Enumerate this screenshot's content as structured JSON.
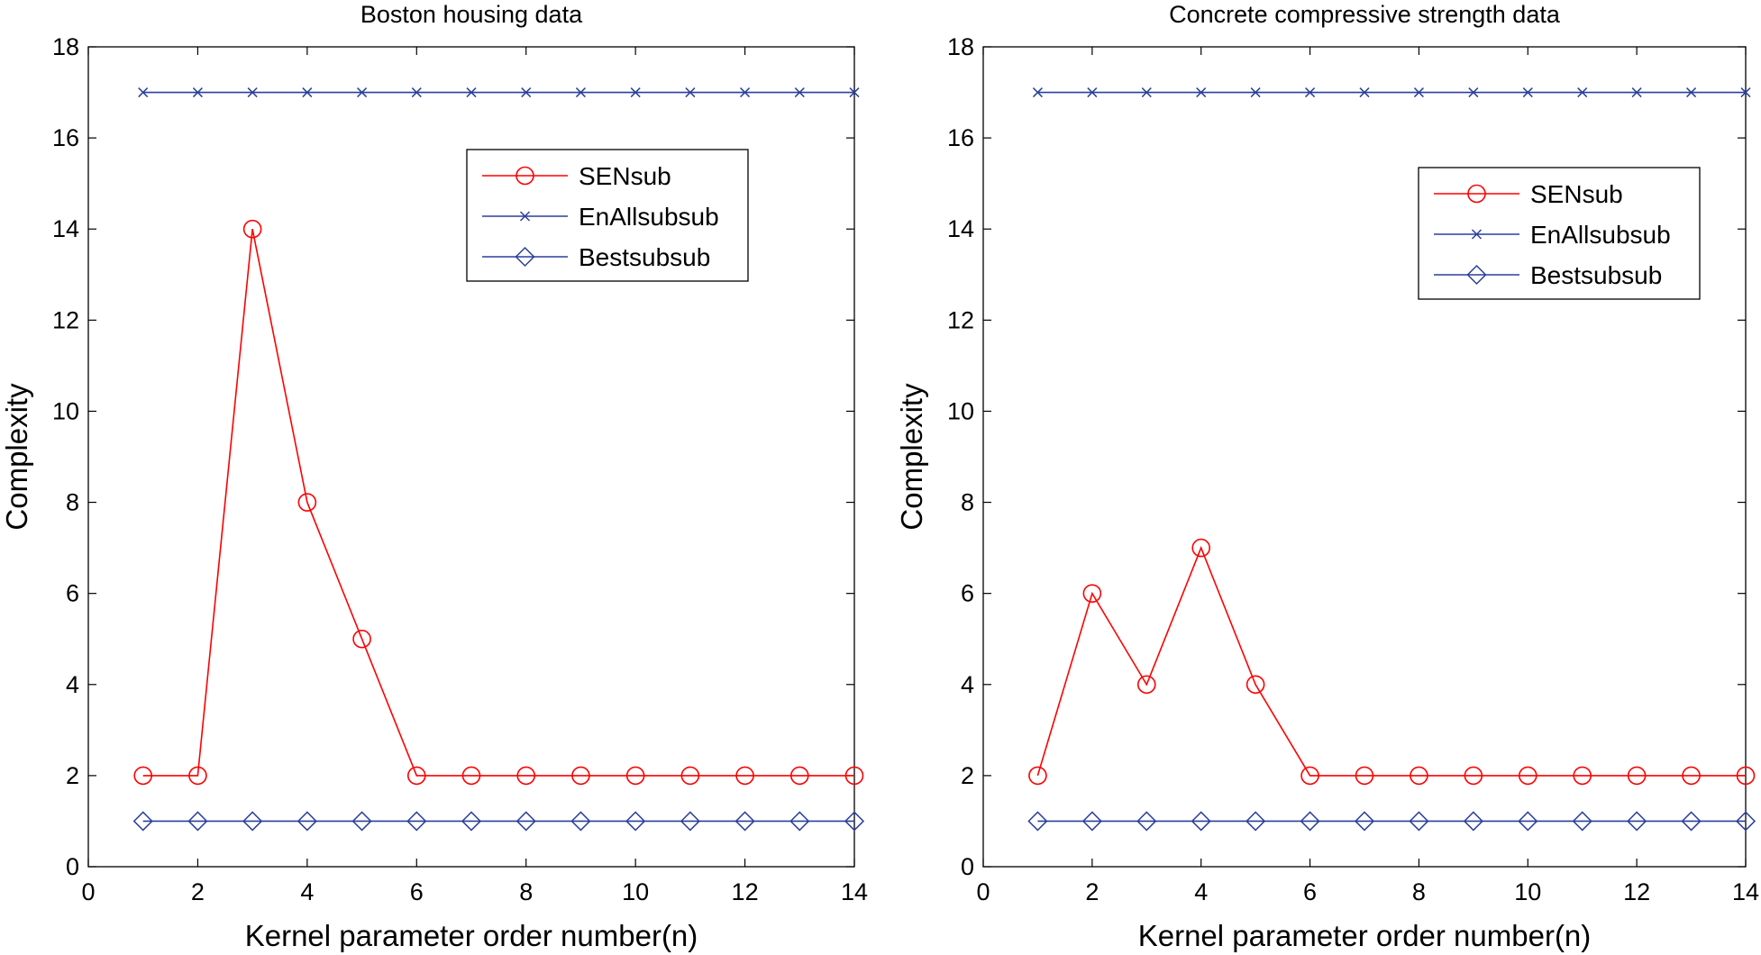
{
  "chart_data": [
    {
      "type": "line",
      "title": "Boston housing data",
      "xlabel": "Kernel parameter order number(n)",
      "ylabel": "Complexity",
      "xlim": [
        0,
        14
      ],
      "ylim": [
        0,
        18
      ],
      "xticks": [
        0,
        2,
        4,
        6,
        8,
        10,
        12,
        14
      ],
      "yticks": [
        0,
        2,
        4,
        6,
        8,
        10,
        12,
        14,
        16,
        18
      ],
      "grid": false,
      "legend_position": "top-right",
      "x": [
        1,
        2,
        3,
        4,
        5,
        6,
        7,
        8,
        9,
        10,
        11,
        12,
        13,
        14
      ],
      "series": [
        {
          "name": "SENsub",
          "color": "#ff0000",
          "marker": "circle",
          "values": [
            2,
            2,
            14,
            8,
            5,
            2,
            2,
            2,
            2,
            2,
            2,
            2,
            2,
            2
          ]
        },
        {
          "name": "EnAllsubsub",
          "color": "#2b3f9b",
          "marker": "x",
          "values": [
            17,
            17,
            17,
            17,
            17,
            17,
            17,
            17,
            17,
            17,
            17,
            17,
            17,
            17
          ]
        },
        {
          "name": "Bestsubsub",
          "color": "#2b3f9b",
          "marker": "diamond",
          "values": [
            1,
            1,
            1,
            1,
            1,
            1,
            1,
            1,
            1,
            1,
            1,
            1,
            1,
            1
          ]
        }
      ]
    },
    {
      "type": "line",
      "title": "Concrete compressive strength data",
      "xlabel": "Kernel parameter order number(n)",
      "ylabel": "Complexity",
      "xlim": [
        0,
        14
      ],
      "ylim": [
        0,
        18
      ],
      "xticks": [
        0,
        2,
        4,
        6,
        8,
        10,
        12,
        14
      ],
      "yticks": [
        0,
        2,
        4,
        6,
        8,
        10,
        12,
        14,
        16,
        18
      ],
      "grid": false,
      "legend_position": "top-right",
      "x": [
        1,
        2,
        3,
        4,
        5,
        6,
        7,
        8,
        9,
        10,
        11,
        12,
        13,
        14
      ],
      "series": [
        {
          "name": "SENsub",
          "color": "#ff0000",
          "marker": "circle",
          "values": [
            2,
            6,
            4,
            7,
            4,
            2,
            2,
            2,
            2,
            2,
            2,
            2,
            2,
            2
          ]
        },
        {
          "name": "EnAllsubsub",
          "color": "#2b3f9b",
          "marker": "x",
          "values": [
            17,
            17,
            17,
            17,
            17,
            17,
            17,
            17,
            17,
            17,
            17,
            17,
            17,
            17
          ]
        },
        {
          "name": "Bestsubsub",
          "color": "#2b3f9b",
          "marker": "diamond",
          "values": [
            1,
            1,
            1,
            1,
            1,
            1,
            1,
            1,
            1,
            1,
            1,
            1,
            1,
            1
          ]
        }
      ]
    }
  ]
}
